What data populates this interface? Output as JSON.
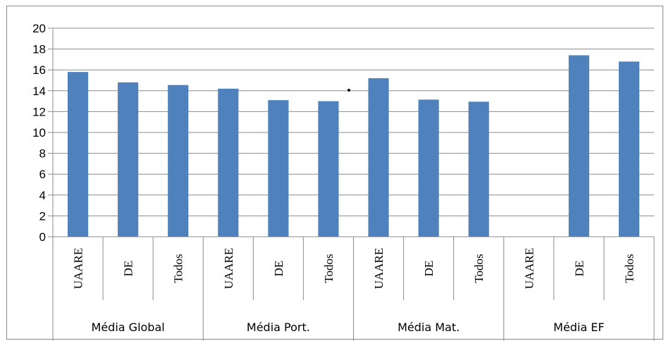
{
  "chart_data": {
    "type": "bar",
    "title": "",
    "xlabel": "",
    "ylabel": "",
    "ylim": [
      0,
      20
    ],
    "yticks": [
      "0",
      "2",
      "4",
      "6",
      "8",
      "10",
      "12",
      "14",
      "16",
      "18",
      "20"
    ],
    "grid": true,
    "legend": "none",
    "bar_color": "#4f81bd",
    "groups": [
      {
        "label": "Média Global",
        "categories": [
          "UAARE",
          "DE",
          "Todos"
        ],
        "values": [
          15.8,
          14.8,
          14.55
        ]
      },
      {
        "label": "Média Port.",
        "categories": [
          "UAARE",
          "DE",
          "Todos"
        ],
        "values": [
          14.2,
          13.1,
          13.0
        ]
      },
      {
        "label": "Média Mat.",
        "categories": [
          "UAARE",
          "DE",
          "Todos"
        ],
        "values": [
          15.2,
          13.15,
          12.95
        ]
      },
      {
        "label": "Média EF",
        "categories": [
          "UAARE",
          "DE",
          "Todos"
        ],
        "values": [
          null,
          17.4,
          16.8
        ]
      }
    ]
  }
}
